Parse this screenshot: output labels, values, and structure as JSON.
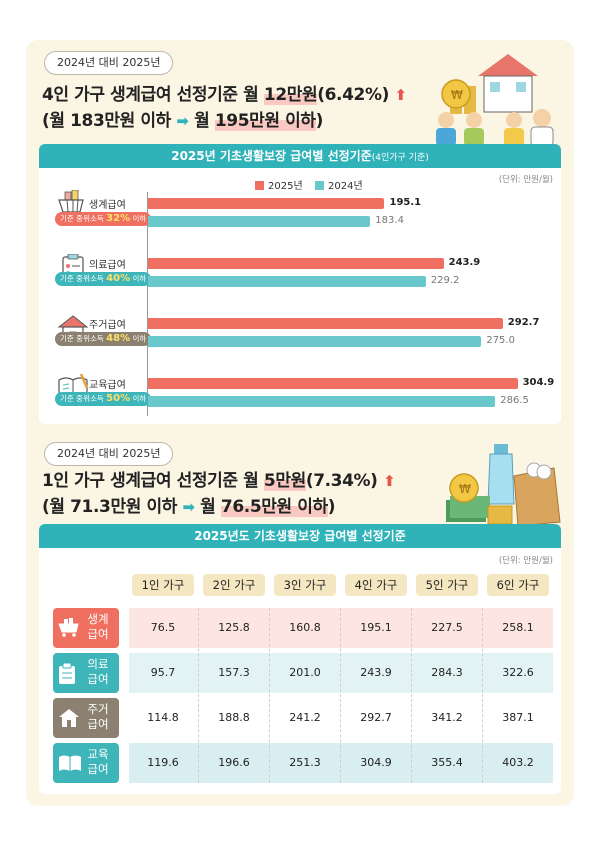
{
  "section1": {
    "badge": "2024년 대비 2025년",
    "headline1": {
      "pre": "4인 가구 생계급여 선정기준 월 ",
      "hl": "12만원",
      "post": "(6.42%)",
      "mark": "⬆"
    },
    "headline2": {
      "pre": "(월 183만원 이하 ",
      "arrow": "➡",
      "mid": " 월 ",
      "hl": "195만원 이하",
      "post": ")"
    }
  },
  "chart_panel": {
    "title": "2025년 기초생활보장 급여별 선정기준",
    "title_sub": "(4인가구 기준)",
    "unit": "(단위: 만원/월)"
  },
  "chart_data": {
    "type": "bar",
    "orientation": "horizontal",
    "title": "2025년 기초생활보장 급여별 선정기준(4인가구 기준)",
    "unit": "(단위: 만원/월)",
    "categories": [
      "생계급여",
      "의료급여",
      "주거급여",
      "교육급여"
    ],
    "criteria": [
      {
        "label": "기준 중위소득 ",
        "pct": "32%",
        "suffix": " 이하"
      },
      {
        "label": "기준 중위소득 ",
        "pct": "40%",
        "suffix": " 이하"
      },
      {
        "label": "기준 중위소득 ",
        "pct": "48%",
        "suffix": " 이하"
      },
      {
        "label": "기준 중위소득 ",
        "pct": "50%",
        "suffix": " 이하"
      }
    ],
    "series": [
      {
        "name": "2025년",
        "color": "#ef6f60",
        "values": [
          195.1,
          243.9,
          292.7,
          304.9
        ]
      },
      {
        "name": "2024년",
        "color": "#69c8cb",
        "values": [
          183.4,
          229.2,
          275.0,
          286.5
        ]
      }
    ],
    "value_labels": [
      [
        "195.1",
        "243.9",
        "292.7",
        "304.9"
      ],
      [
        "183.4",
        "229.2",
        "275.0",
        "286.5"
      ]
    ],
    "legend": "top-center",
    "xlim": [
      0,
      330
    ]
  },
  "section2": {
    "badge": "2024년 대비 2025년",
    "headline1": {
      "pre": "1인 가구 생계급여 선정기준 월 ",
      "hl": "5만원",
      "post": "(7.34%)",
      "mark": "⬆"
    },
    "headline2": {
      "pre": "(월 71.3만원 이하 ",
      "arrow": "➡",
      "mid": " 월 ",
      "hl": "76.5만원 이하",
      "post": ")"
    }
  },
  "table": {
    "title": "2025년도 기초생활보장 급여별 선정기준",
    "unit": "(단위: 만원/월)",
    "columns": [
      "1인 가구",
      "2인 가구",
      "3인 가구",
      "4인 가구",
      "5인 가구",
      "6인 가구"
    ],
    "rows": [
      {
        "label": "생계 급여",
        "icon": "cart-icon",
        "color": "#ef6f60",
        "bg": "#fde6e1",
        "values": [
          "76.5",
          "125.8",
          "160.8",
          "195.1",
          "227.5",
          "258.1"
        ]
      },
      {
        "label": "의료 급여",
        "icon": "clipboard-icon",
        "color": "#3eb5b8",
        "bg": "#e3f3f4",
        "values": [
          "95.7",
          "157.3",
          "201.0",
          "243.9",
          "284.3",
          "322.6"
        ]
      },
      {
        "label": "주거 급여",
        "icon": "house-icon",
        "color": "#8c8070",
        "bg": "#ffffff",
        "values": [
          "114.8",
          "188.8",
          "241.2",
          "292.7",
          "341.2",
          "387.1"
        ]
      },
      {
        "label": "교육 급여",
        "icon": "book-icon",
        "color": "#3eb5b8",
        "bg": "#d9eef0",
        "values": [
          "119.6",
          "196.6",
          "251.3",
          "304.9",
          "355.4",
          "403.2"
        ]
      }
    ]
  },
  "colors": {
    "accent": "#2fb3b8",
    "red": "#ef6f60",
    "teal_bar": "#69c8cb",
    "highlight": "#f8c8c1",
    "card": "#fbf6e4"
  }
}
